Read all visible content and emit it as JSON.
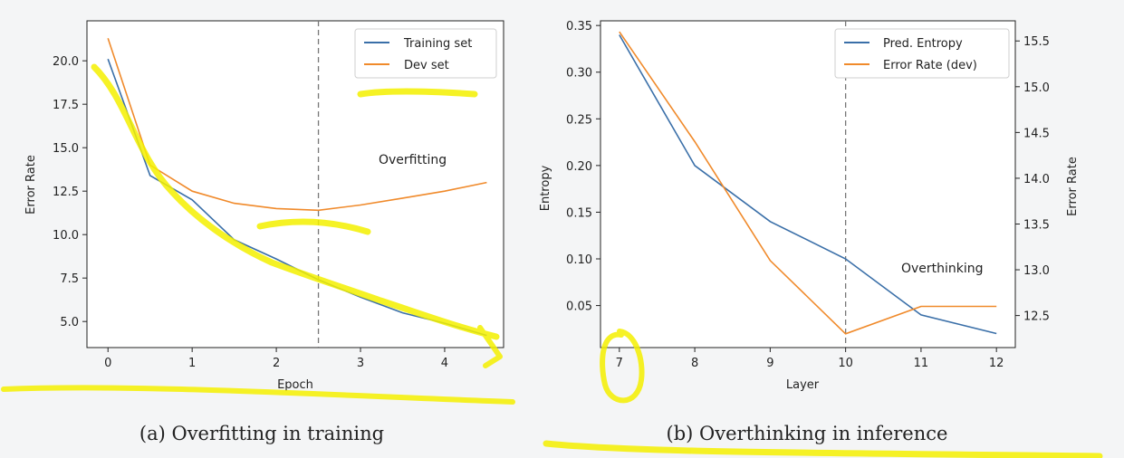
{
  "chart_data": [
    {
      "type": "line",
      "caption": "(a) Overfitting in training",
      "xlabel": "Epoch",
      "ylabel": "Error Rate",
      "xlim": [
        -0.25,
        4.7
      ],
      "ylim": [
        3.5,
        22.3
      ],
      "xticks": [
        0,
        1,
        2,
        3,
        4
      ],
      "yticks": [
        5.0,
        7.5,
        10.0,
        12.5,
        15.0,
        17.5,
        20.0
      ],
      "vline": 2.5,
      "annotation": "Overfitting",
      "legend": "top-right",
      "series": [
        {
          "name": "Training set",
          "color": "#3a6fa8",
          "x": [
            0,
            0.5,
            1,
            1.5,
            2,
            2.5,
            3,
            3.5,
            4,
            4.5
          ],
          "y": [
            20.1,
            13.4,
            12.0,
            9.7,
            8.6,
            7.4,
            6.4,
            5.5,
            4.9,
            4.2
          ]
        },
        {
          "name": "Dev set",
          "color": "#f08a2b",
          "x": [
            0,
            0.5,
            1,
            1.5,
            2,
            2.5,
            3,
            3.5,
            4,
            4.5
          ],
          "y": [
            21.3,
            14.0,
            12.5,
            11.8,
            11.5,
            11.4,
            11.7,
            12.1,
            12.5,
            13.0
          ]
        }
      ]
    },
    {
      "type": "line",
      "caption": "(b) Overthinking in inference",
      "xlabel": "Layer",
      "ylabel": "Entropy",
      "ylabel_right": "Error Rate",
      "xlim": [
        6.75,
        12.25
      ],
      "ylim": [
        0.005,
        0.355
      ],
      "ylim_right": [
        12.15,
        15.72
      ],
      "xticks": [
        7,
        8,
        9,
        10,
        11,
        12
      ],
      "yticks": [
        0.05,
        0.1,
        0.15,
        0.2,
        0.25,
        0.3,
        0.35
      ],
      "yticks_right": [
        12.5,
        13.0,
        13.5,
        14.0,
        14.5,
        15.0,
        15.5
      ],
      "vline": 10,
      "annotation": "Overthinking",
      "legend": "top-right",
      "series": [
        {
          "name": "Pred. Entropy",
          "color": "#3a6fa8",
          "axis": "left",
          "x": [
            7,
            8,
            9,
            10,
            11,
            12
          ],
          "y": [
            0.34,
            0.2,
            0.14,
            0.1,
            0.04,
            0.02
          ]
        },
        {
          "name": "Error Rate (dev)",
          "color": "#f08a2b",
          "axis": "right",
          "x": [
            7,
            8,
            9,
            10,
            11,
            12
          ],
          "y": [
            15.6,
            14.4,
            13.1,
            12.3,
            12.6,
            12.6
          ]
        }
      ]
    }
  ],
  "highlight_color": "#f4f000"
}
